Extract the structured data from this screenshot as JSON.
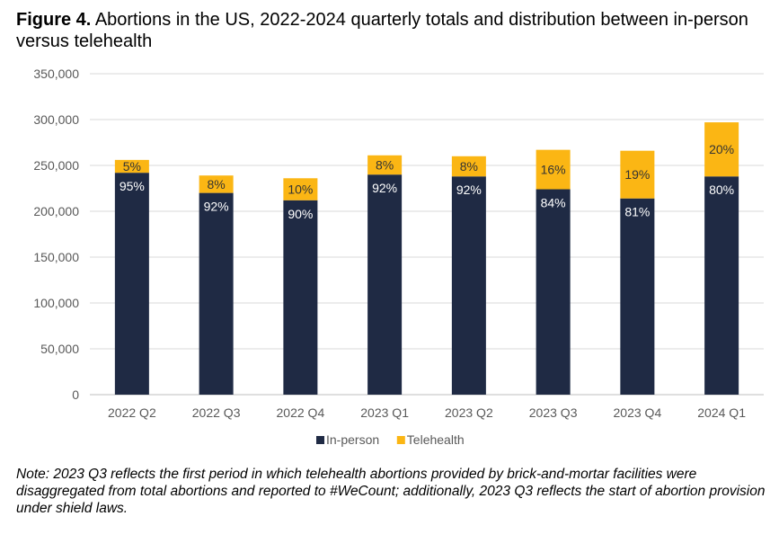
{
  "figure_label": "Figure 4.",
  "title": "Abortions in the US, 2022-2024 quarterly totals and distribution between in-person versus telehealth",
  "note": "Note: 2023 Q3 reflects the first period in which telehealth abortions provided by brick-and-mortar facilities were disaggregated from total abortions and reported to #WeCount; additionally, 2023 Q3 reflects the start of abortion provision under shield laws.",
  "chart_data": {
    "type": "bar",
    "stacked": true,
    "categories": [
      "2022 Q2",
      "2022 Q3",
      "2022 Q4",
      "2023 Q1",
      "2023 Q2",
      "2023 Q3",
      "2023 Q4",
      "2024 Q1"
    ],
    "series": [
      {
        "name": "In-person",
        "color": "#1f2a44",
        "values": [
          242000,
          220000,
          212000,
          240000,
          238000,
          224000,
          214000,
          238000
        ],
        "labels": [
          "95%",
          "92%",
          "90%",
          "92%",
          "92%",
          "84%",
          "81%",
          "80%"
        ],
        "label_color": "#ffffff"
      },
      {
        "name": "Telehealth",
        "color": "#fbb614",
        "values": [
          14000,
          19000,
          24000,
          21000,
          22000,
          43000,
          52000,
          59000
        ],
        "labels": [
          "5%",
          "8%",
          "10%",
          "8%",
          "8%",
          "16%",
          "19%",
          "20%"
        ],
        "label_color": "#333333"
      }
    ],
    "ylim": [
      0,
      350000
    ],
    "yticks": [
      0,
      50000,
      100000,
      150000,
      200000,
      250000,
      300000,
      350000
    ],
    "ytick_labels": [
      "0",
      "50,000",
      "100,000",
      "150,000",
      "200,000",
      "250,000",
      "300,000",
      "350,000"
    ],
    "grid": true,
    "legend": "bottom"
  }
}
